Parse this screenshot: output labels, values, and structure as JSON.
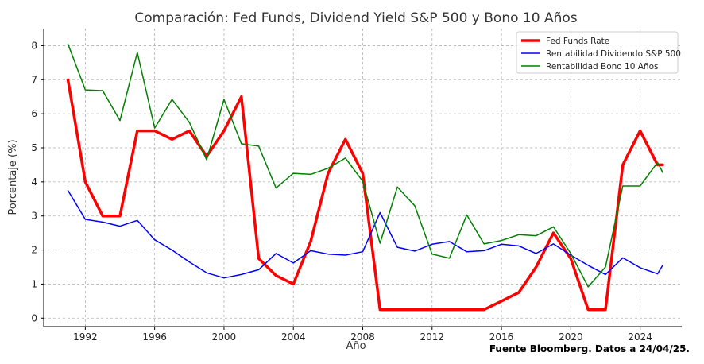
{
  "chart_data": {
    "type": "line",
    "title": "Comparación: Fed Funds, Dividend Yield S&P 500 y Bono 10 Años",
    "xlabel": "Año",
    "ylabel": "Porcentaje (%)",
    "xlim": [
      1989.6,
      2026.4
    ],
    "ylim": [
      -0.25,
      8.5
    ],
    "x_ticks": [
      1992,
      1996,
      2000,
      2004,
      2008,
      2012,
      2016,
      2020,
      2024
    ],
    "y_ticks": [
      0,
      1,
      2,
      3,
      4,
      5,
      6,
      7,
      8
    ],
    "grid": true,
    "legend_position": "top-right",
    "x": [
      1991,
      1992,
      1993,
      1994,
      1995,
      1996,
      1997,
      1998,
      1999,
      2000,
      2001,
      2002,
      2003,
      2004,
      2005,
      2006,
      2007,
      2008,
      2009,
      2010,
      2011,
      2012,
      2013,
      2014,
      2015,
      2016,
      2017,
      2018,
      2019,
      2020,
      2021,
      2022,
      2023,
      2024,
      2025
    ],
    "series": [
      {
        "name": "Fed Funds Rate",
        "color": "#ff0000",
        "values": [
          7.0,
          4.0,
          3.0,
          3.0,
          5.5,
          5.5,
          5.25,
          5.5,
          4.75,
          5.5,
          6.5,
          1.75,
          1.25,
          1.0,
          2.25,
          4.25,
          5.25,
          4.25,
          0.25,
          0.25,
          0.25,
          0.25,
          0.25,
          0.25,
          0.25,
          0.5,
          0.75,
          1.5,
          2.5,
          1.75,
          0.25,
          0.25,
          4.5,
          5.5,
          4.5
        ],
        "x_end": 2025.3,
        "end_value": 4.5
      },
      {
        "name": "Rentabilidad Dividendo S&P 500",
        "color": "#0000ff",
        "values": [
          3.75,
          2.9,
          2.82,
          2.7,
          2.87,
          2.3,
          2.0,
          1.65,
          1.33,
          1.18,
          1.28,
          1.42,
          1.9,
          1.62,
          1.98,
          1.88,
          1.85,
          1.95,
          3.1,
          2.08,
          1.97,
          2.17,
          2.25,
          1.95,
          1.98,
          2.17,
          2.12,
          1.9,
          2.18,
          1.85,
          1.55,
          1.28,
          1.77,
          1.48,
          1.3
        ],
        "x_end": 2025.3,
        "end_value": 1.55
      },
      {
        "name": "Rentabilidad Bono 10 Años",
        "color": "#008000",
        "values": [
          8.05,
          6.7,
          6.68,
          5.8,
          7.8,
          5.58,
          6.42,
          5.75,
          4.65,
          6.42,
          5.12,
          5.05,
          3.82,
          4.25,
          4.22,
          4.4,
          4.7,
          4.02,
          2.2,
          3.85,
          3.3,
          1.88,
          1.76,
          3.03,
          2.18,
          2.28,
          2.45,
          2.42,
          2.68,
          1.9,
          0.92,
          1.5,
          3.88,
          3.88,
          4.57
        ],
        "x_end": 2025.3,
        "end_value": 4.28
      }
    ]
  },
  "source_note": "Fuente Bloomberg. Datos a 24/04/25."
}
